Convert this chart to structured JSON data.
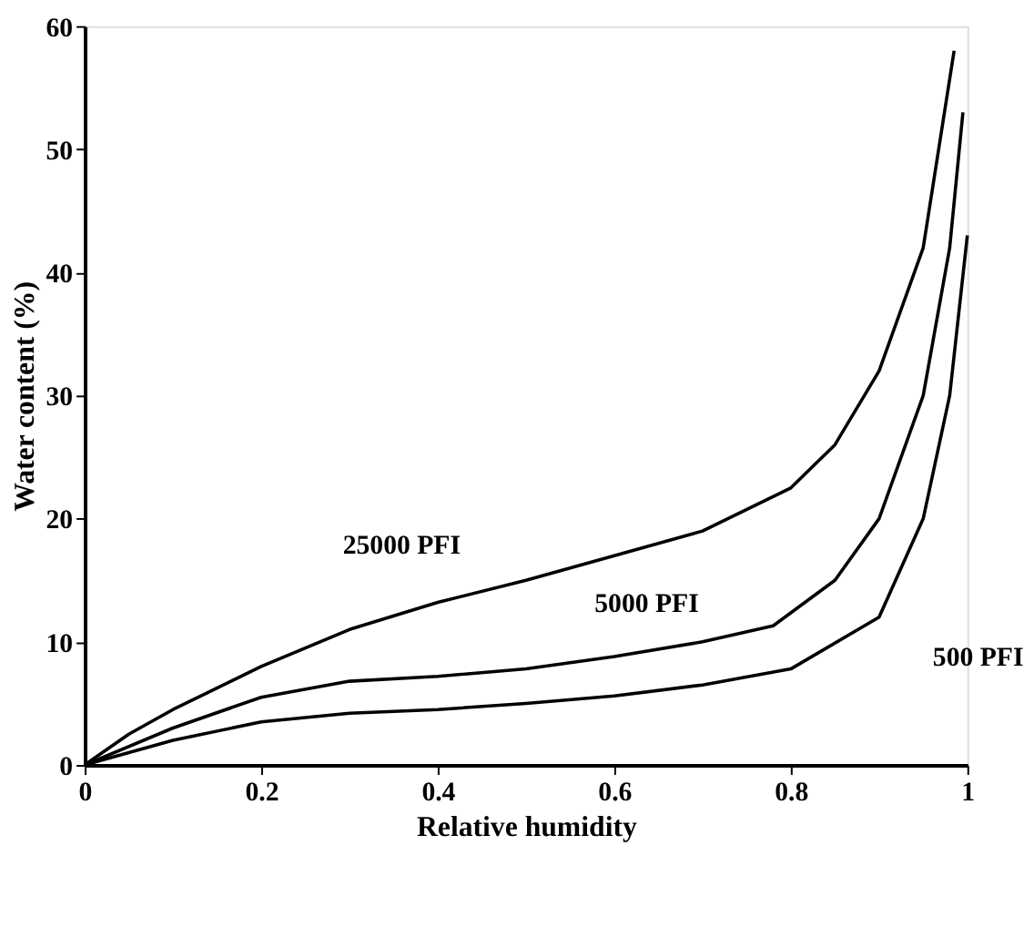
{
  "chart_data": {
    "type": "line",
    "xlabel": "Relative humidity",
    "ylabel": "Water content (%)",
    "xlim": [
      0,
      1
    ],
    "ylim": [
      0,
      60
    ],
    "xticks": [
      0,
      0.2,
      0.4,
      0.6,
      0.8,
      1
    ],
    "yticks": [
      0,
      10,
      20,
      30,
      40,
      50,
      60
    ],
    "grid": false,
    "legend": false,
    "marker": "none",
    "line_style": "solid",
    "series": [
      {
        "name": "25000 PFI",
        "color": "#000000",
        "x": [
          0,
          0.05,
          0.1,
          0.2,
          0.3,
          0.4,
          0.5,
          0.6,
          0.7,
          0.8,
          0.85,
          0.9,
          0.95,
          0.985
        ],
        "values": [
          0,
          2.5,
          4.5,
          8,
          11,
          13.2,
          15,
          17,
          19,
          22.5,
          26,
          32,
          42,
          58
        ]
      },
      {
        "name": "5000 PFI",
        "color": "#000000",
        "x": [
          0,
          0.1,
          0.2,
          0.3,
          0.4,
          0.5,
          0.6,
          0.7,
          0.78,
          0.85,
          0.9,
          0.95,
          0.98,
          0.995
        ],
        "values": [
          0,
          3,
          5.5,
          6.8,
          7.2,
          7.8,
          8.8,
          10,
          11.3,
          15,
          20,
          30,
          42,
          53
        ]
      },
      {
        "name": "500 PFI",
        "color": "#000000",
        "x": [
          0,
          0.1,
          0.2,
          0.3,
          0.4,
          0.5,
          0.6,
          0.7,
          0.8,
          0.9,
          0.95,
          0.98,
          1.0
        ],
        "values": [
          0,
          2,
          3.5,
          4.2,
          4.5,
          5,
          5.6,
          6.5,
          7.8,
          12,
          20,
          30,
          43
        ]
      }
    ]
  }
}
